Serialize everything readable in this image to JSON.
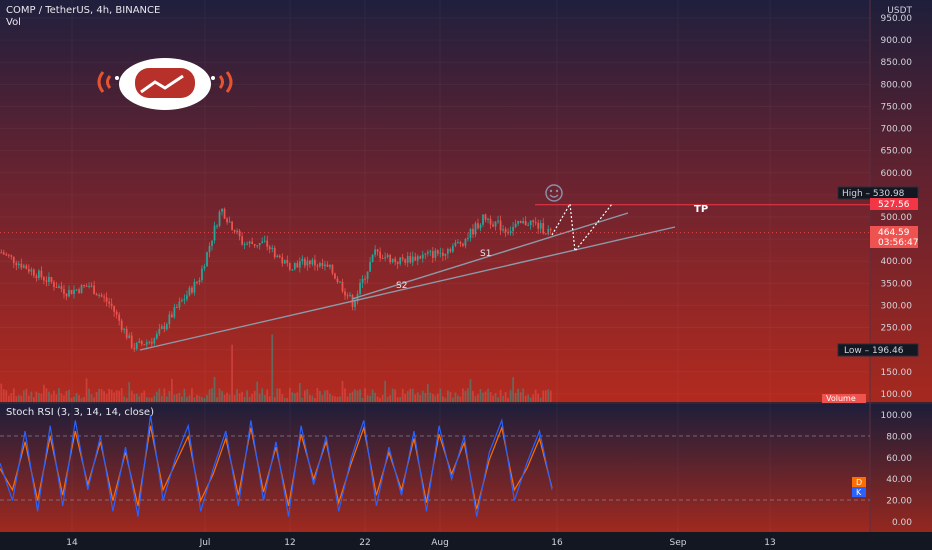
{
  "header": {
    "symbol": "COMP / TetherUS, 4h, BINANCE",
    "volume_label": "Vol",
    "currency": "USDT"
  },
  "price_axis": {
    "ticks": [
      "950.00",
      "900.00",
      "850.00",
      "800.00",
      "750.00",
      "700.00",
      "650.00",
      "600.00",
      "550.00",
      "500.00",
      "450.00",
      "400.00",
      "350.00",
      "300.00",
      "250.00",
      "200.00",
      "150.00",
      "100.00"
    ]
  },
  "badges": {
    "high_label": "High",
    "high_value": "530.98",
    "tp_level": "527.56",
    "last_price": "464.59",
    "countdown": "03:56:47",
    "low_label": "Low",
    "low_value": "196.46",
    "volume_label": "Volume"
  },
  "annotations": {
    "tp": "TP",
    "s1": "S1",
    "s2": "S2"
  },
  "indicator": {
    "title": "Stoch RSI (3, 3, 14, 14, close)",
    "ticks": [
      "100.00",
      "80.00",
      "60.00",
      "40.00",
      "20.00",
      "0.00"
    ],
    "d_label": "D",
    "k_label": "K"
  },
  "time_axis": {
    "labels": [
      "14",
      "Jul",
      "12",
      "22",
      "Aug",
      "16",
      "Sep",
      "13"
    ]
  },
  "colors": {
    "up": "#26a69a",
    "down": "#ef5350",
    "k_line": "#2962ff",
    "d_line": "#ff6d00",
    "tp_line": "#f23645"
  },
  "chart_data": {
    "type": "candlestick",
    "title": "COMP / TetherUS, 4h, BINANCE",
    "y_unit": "USDT",
    "ylim": [
      80,
      990
    ],
    "high": 530.98,
    "low": 196.46,
    "last": 464.59,
    "tp": 527.56,
    "price_path": [
      {
        "x": "Jun 6",
        "y": 420
      },
      {
        "x": "Jun 9",
        "y": 390
      },
      {
        "x": "Jun 12",
        "y": 360
      },
      {
        "x": "Jun 14",
        "y": 330
      },
      {
        "x": "Jun 17",
        "y": 345
      },
      {
        "x": "Jun 20",
        "y": 300
      },
      {
        "x": "Jun 22",
        "y": 205
      },
      {
        "x": "Jun 25",
        "y": 225
      },
      {
        "x": "Jun 28",
        "y": 295
      },
      {
        "x": "Jul 1",
        "y": 360
      },
      {
        "x": "Jul 4",
        "y": 520
      },
      {
        "x": "Jul 7",
        "y": 440
      },
      {
        "x": "Jul 10",
        "y": 440
      },
      {
        "x": "Jul 13",
        "y": 390
      },
      {
        "x": "Jul 16",
        "y": 400
      },
      {
        "x": "Jul 19",
        "y": 380
      },
      {
        "x": "Jul 21",
        "y": 305
      },
      {
        "x": "Jul 24",
        "y": 420
      },
      {
        "x": "Jul 27",
        "y": 400
      },
      {
        "x": "Jul 30",
        "y": 410
      },
      {
        "x": "Aug 2",
        "y": 420
      },
      {
        "x": "Aug 5",
        "y": 445
      },
      {
        "x": "Aug 8",
        "y": 500
      },
      {
        "x": "Aug 11",
        "y": 470
      },
      {
        "x": "Aug 14",
        "y": 490
      },
      {
        "x": "Aug 16",
        "y": 464.59
      }
    ],
    "trendlines": [
      {
        "name": "S1",
        "from": {
          "x": "Jul 21",
          "y": 305
        },
        "to": {
          "x": "Aug 24",
          "y": 505
        }
      },
      {
        "name": "S2",
        "from": {
          "x": "Jun 22",
          "y": 200
        },
        "to": {
          "x": "Aug 31",
          "y": 470
        }
      }
    ],
    "projection": [
      {
        "x": "Aug 16",
        "y": 460
      },
      {
        "x": "Aug 17",
        "y": 527
      },
      {
        "x": "Aug 19",
        "y": 420
      },
      {
        "x": "Aug 22",
        "y": 527
      }
    ],
    "stoch_rsi": {
      "ylim": [
        0,
        100
      ],
      "bands": [
        20,
        80
      ],
      "k": [
        55,
        20,
        85,
        10,
        90,
        15,
        95,
        30,
        80,
        10,
        70,
        5,
        100,
        20,
        60,
        90,
        10,
        50,
        85,
        15,
        95,
        20,
        75,
        5,
        90,
        35,
        80,
        10,
        60,
        95,
        15,
        70,
        25,
        85,
        10,
        90,
        40,
        80,
        5,
        65,
        95,
        20,
        55,
        85,
        30
      ],
      "d": [
        50,
        30,
        75,
        20,
        80,
        25,
        85,
        35,
        75,
        20,
        65,
        15,
        90,
        30,
        55,
        80,
        20,
        45,
        78,
        25,
        88,
        28,
        70,
        15,
        82,
        40,
        75,
        18,
        55,
        88,
        25,
        65,
        30,
        78,
        18,
        82,
        45,
        74,
        12,
        58,
        88,
        30,
        50,
        78,
        32
      ]
    }
  }
}
